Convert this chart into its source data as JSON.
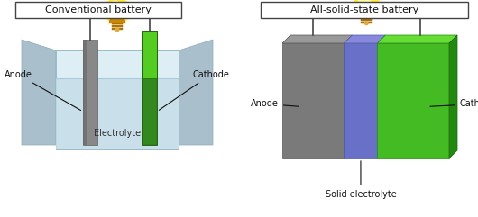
{
  "bg_color": "#ffffff",
  "title1": "Conventional battery",
  "title2": "All-solid-state battery",
  "label_anode1": "Anode",
  "label_cathode1": "Cathode",
  "label_electrolyte1": "Electrolyte",
  "label_anode2": "Anode",
  "label_cathode2": "Cathode",
  "label_solid_electrolyte": "Solid electrolyte",
  "color_anode_gray": "#888888",
  "color_anode_gray_dark": "#707070",
  "color_cathode_green": "#44bb22",
  "color_cathode_green_dark": "#2a8810",
  "color_electrolyte_liquid": "#d4e8f0",
  "color_container_outer": "#b8ccd8",
  "color_container_inner": "#ddeef5",
  "color_solid_electrolyte": "#6870c8",
  "color_bulb_yellow": "#ffe844",
  "color_bulb_bright": "#fffaaa",
  "color_bulb_base": "#cc8800",
  "color_wire": "#444444",
  "color_title_border": "#444444"
}
